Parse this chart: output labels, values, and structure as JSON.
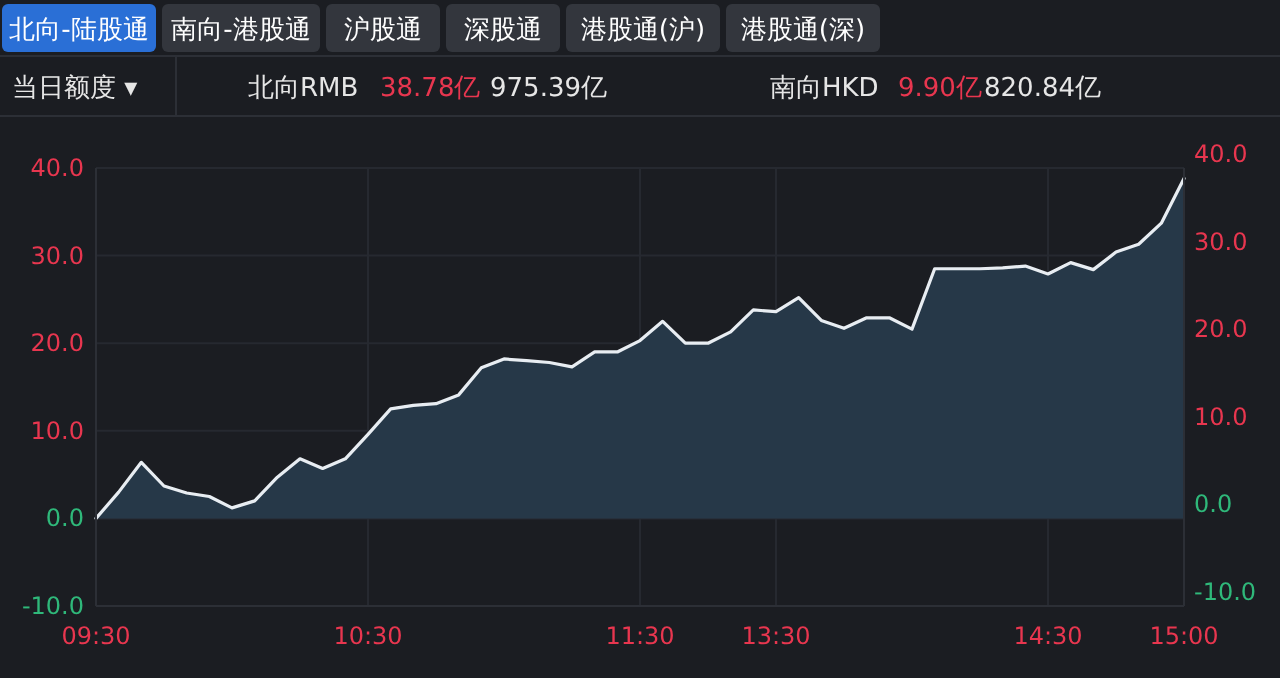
{
  "chart_data": {
    "type": "area",
    "annotations": [
      "北向-陆股通",
      "南向-港股通",
      "沪股通",
      "深股通",
      "港股通(沪)",
      "港股通(深)",
      "当日额度 ▾",
      "北向RMB",
      "38.78亿",
      "975.39亿",
      "南向HKD",
      "9.90亿",
      "820.84亿"
    ],
    "categories": [
      "09:30",
      null,
      null,
      null,
      null,
      null,
      null,
      null,
      null,
      null,
      null,
      null,
      "10:30",
      null,
      null,
      null,
      null,
      null,
      null,
      null,
      null,
      null,
      null,
      null,
      "11:30",
      null,
      null,
      null,
      null,
      null,
      "13:30",
      null,
      null,
      null,
      null,
      null,
      null,
      null,
      null,
      null,
      null,
      null,
      "14:30",
      null,
      null,
      null,
      null,
      null,
      "15:00"
    ],
    "series": [
      {
        "color": "#e8edf2",
        "values": [
          0,
          3,
          6.4,
          3.7,
          2.9,
          2.5,
          1.2,
          2.0,
          4.7,
          6.8,
          5.7,
          6.8,
          9.6,
          12.5,
          12.9,
          13.1,
          14.1,
          17.2,
          18.2,
          18,
          17.8,
          17.3,
          19,
          19,
          20.3,
          22.5,
          20,
          20,
          21.3,
          23.8,
          23.6,
          25.2,
          22.6,
          21.7,
          22.9,
          22.9,
          21.6,
          28.5,
          28.5,
          28.5,
          28.6,
          28.8,
          27.9,
          29.2,
          28.4,
          30.4,
          31.3,
          33.7,
          38.8
        ]
      }
    ],
    "ylim": [
      -10,
      40
    ],
    "yticks": [
      {
        "value": -10,
        "label": "-10.0"
      },
      {
        "value": 0,
        "label": "0.0"
      },
      {
        "value": 10,
        "label": "10.0"
      },
      {
        "value": 20,
        "label": "20.0"
      },
      {
        "value": 30,
        "label": "30.0"
      },
      {
        "value": 40,
        "label": "40.0"
      }
    ],
    "y2lim": [
      -10,
      40
    ],
    "y2ticks": [
      {
        "value": -10,
        "label": "-10.0"
      },
      {
        "value": 0,
        "label": "0.0"
      },
      {
        "value": 10,
        "label": "10.0"
      },
      {
        "value": 20,
        "label": "20.0"
      },
      {
        "value": 30,
        "label": "30.0"
      },
      {
        "value": 40,
        "label": "40.0"
      }
    ],
    "grid": true
  }
}
